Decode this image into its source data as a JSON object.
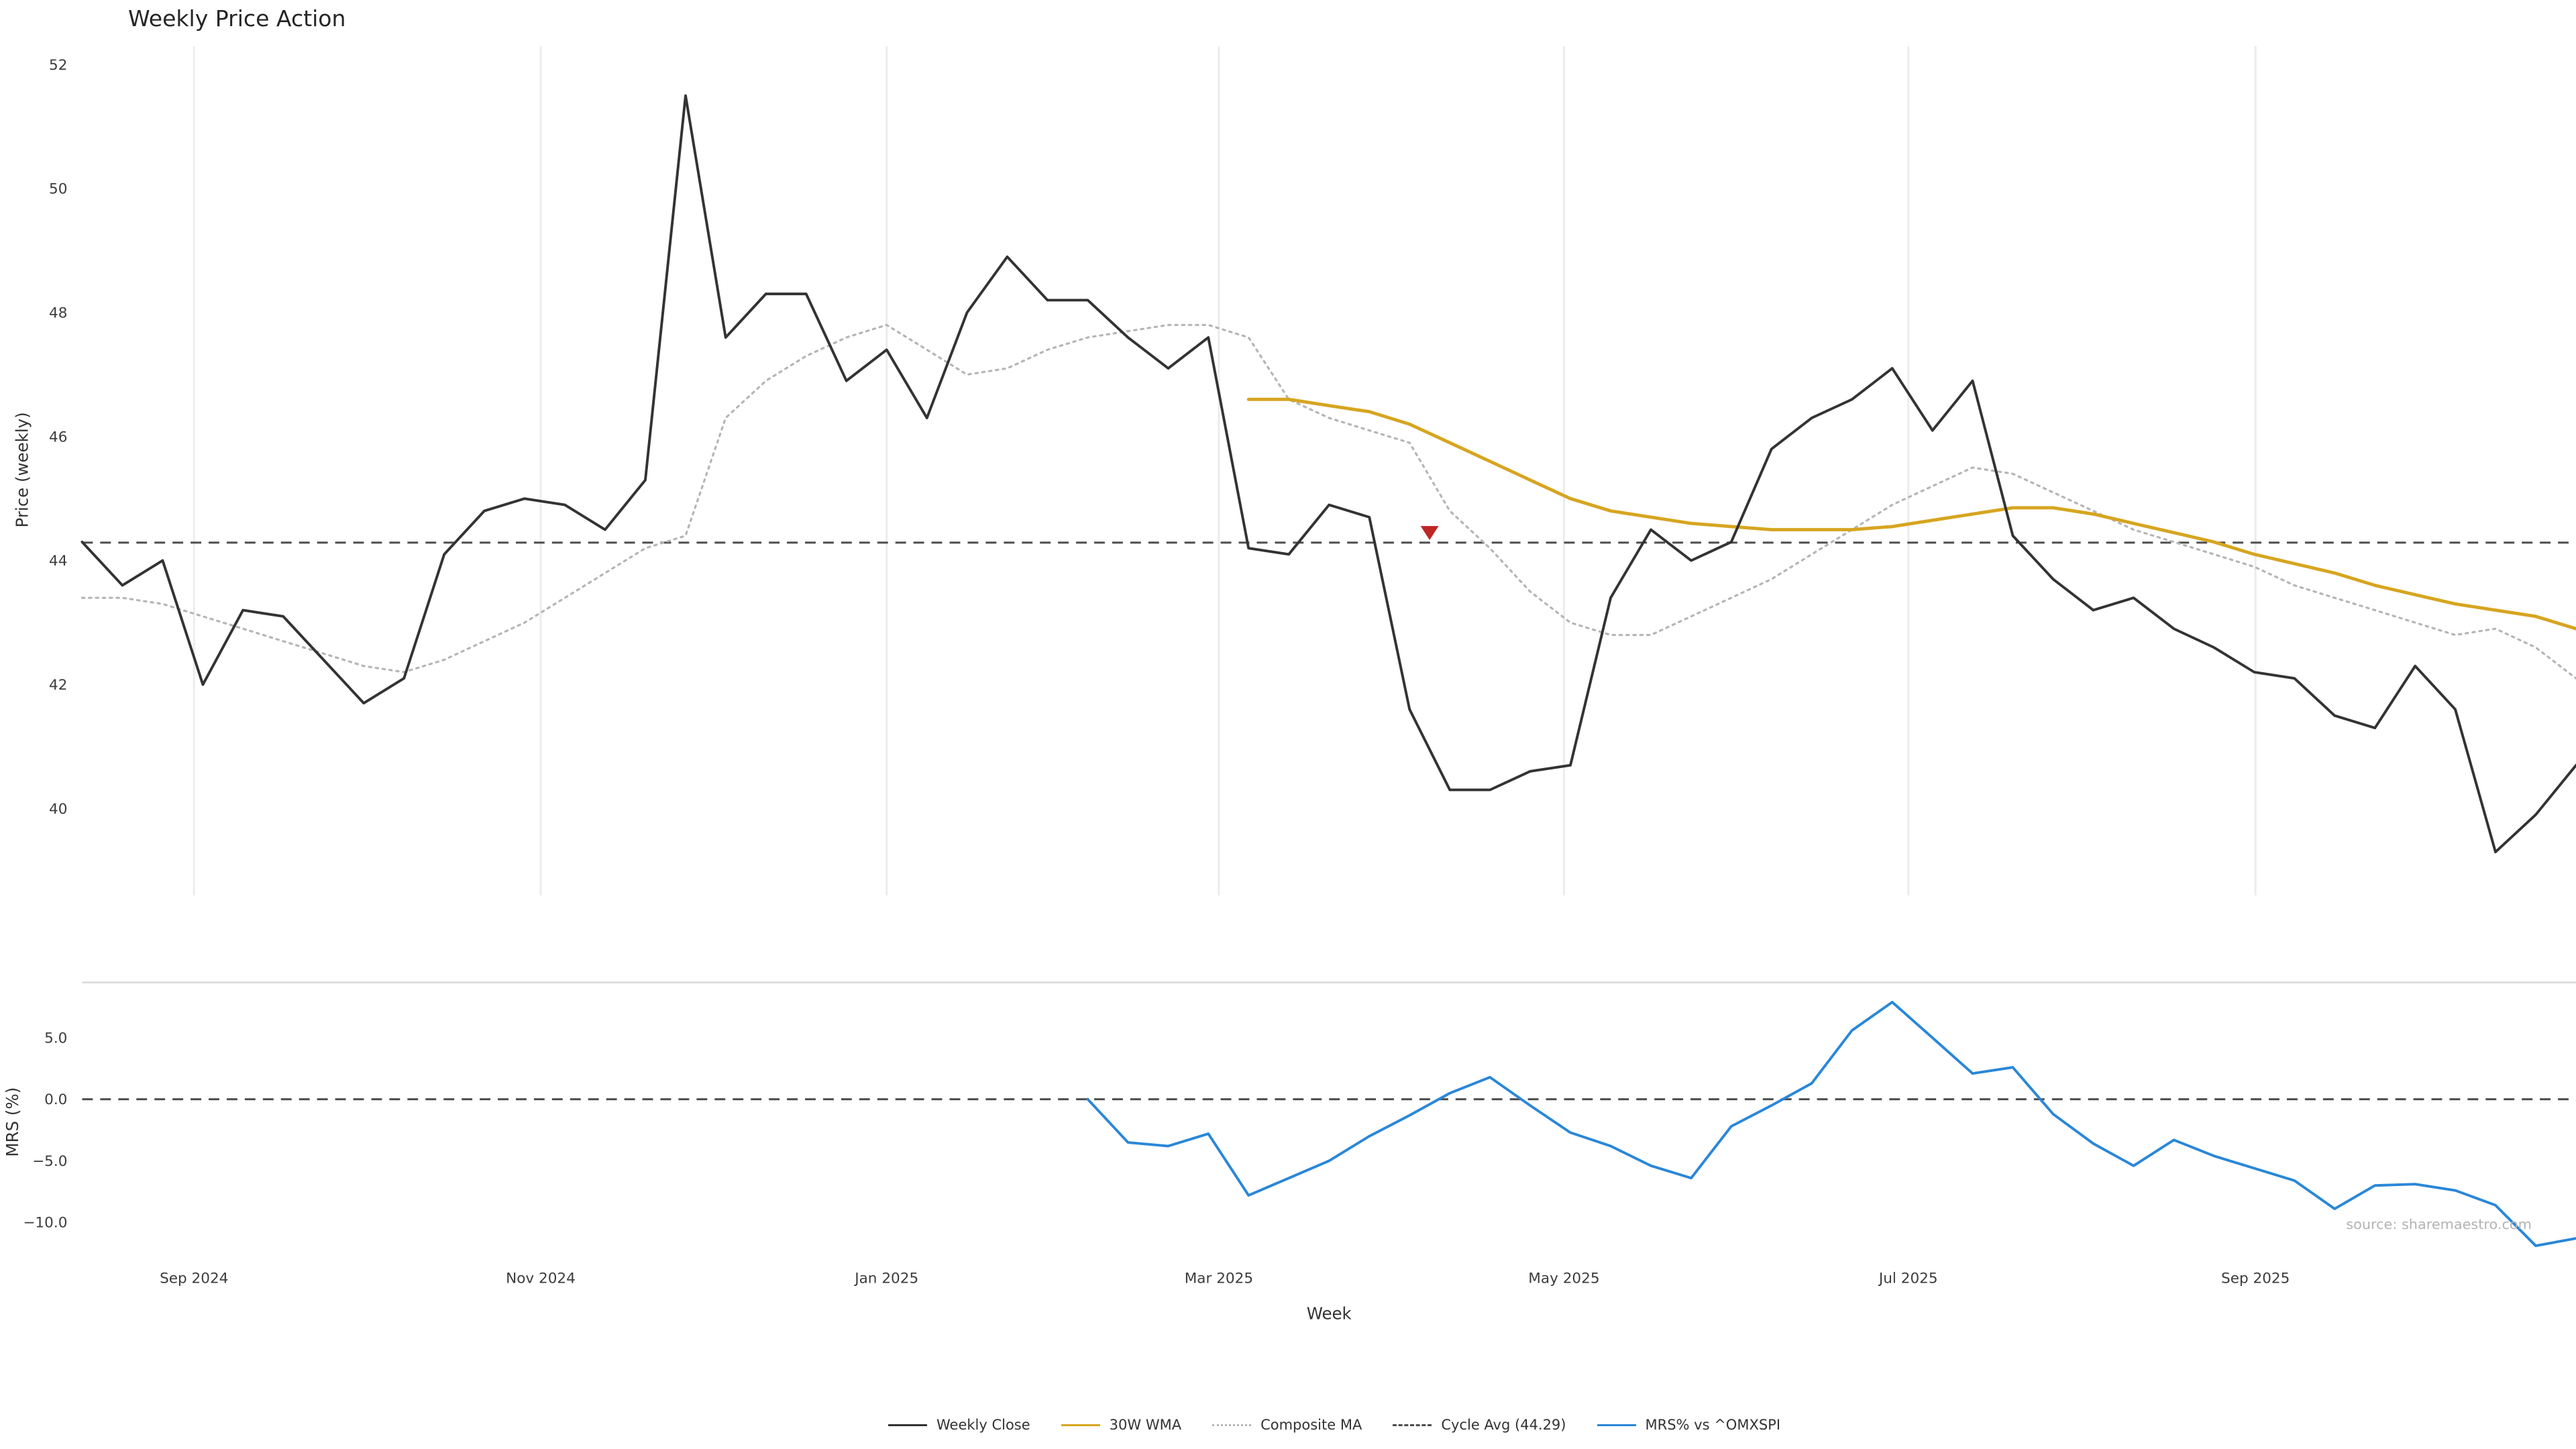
{
  "title": "Weekly Price Action",
  "source": "source: sharemaestro.com",
  "colors": {
    "close": "#333333",
    "wma": "#d6a520",
    "composite": "#b5b5b5",
    "cycle_avg": "#4d4d4d",
    "mrs": "#2a87d8",
    "marker": "#bf2626",
    "grid": "#ececec",
    "spine": "#d9d9d9",
    "tick": "#3c3c3c",
    "source_text": "#b3b3b3"
  },
  "chart_data": [
    {
      "type": "line",
      "title": "Weekly Price Action",
      "ylabel": "Price (weekly)",
      "ylim": [
        38.6,
        52.3
      ],
      "yticks": [
        40,
        42,
        44,
        46,
        48,
        50,
        52
      ],
      "ytick_labels": [
        "40",
        "42",
        "44",
        "46",
        "48",
        "50",
        "52"
      ],
      "xlim": [
        0,
        62
      ],
      "grid": true,
      "legend_position": "bottom-center",
      "xticks": {
        "positions": [
          2.78,
          11.4,
          20.0,
          28.26,
          36.84,
          45.4,
          54.03
        ],
        "labels": [
          "Sep 2024",
          "Nov 2024",
          "Jan 2025",
          "Mar 2025",
          "May 2025",
          "Jul 2025",
          "Sep 2025"
        ]
      },
      "reference_line": {
        "label": "Cycle Avg (44.29)",
        "value": 44.29,
        "style": "dashed"
      },
      "marker": {
        "shape": "triangle-down",
        "week": 33.5,
        "value": 44.45,
        "color": "#bf2626"
      },
      "series": [
        {
          "name": "Composite MA",
          "data_name": "composite-ma-line",
          "style": "dotted",
          "color": "#b5b5b5",
          "width": 1.3,
          "start_index": 0,
          "values": [
            43.4,
            43.4,
            43.3,
            43.1,
            42.9,
            42.7,
            42.5,
            42.3,
            42.2,
            42.4,
            42.7,
            43.0,
            43.4,
            43.8,
            44.2,
            44.4,
            46.3,
            46.9,
            47.3,
            47.6,
            47.8,
            47.4,
            47.0,
            47.1,
            47.4,
            47.6,
            47.7,
            47.8,
            47.8,
            47.6,
            46.6,
            46.3,
            46.1,
            45.9,
            44.8,
            44.2,
            43.5,
            43.0,
            42.8,
            42.8,
            43.1,
            43.4,
            43.7,
            44.1,
            44.5,
            44.9,
            45.2,
            45.5,
            45.4,
            45.1,
            44.8,
            44.5,
            44.3,
            44.1,
            43.9,
            43.6,
            43.4,
            43.2,
            43.0,
            42.8,
            42.9,
            42.6,
            42.1
          ]
        },
        {
          "name": "30W WMA",
          "data_name": "wma-30w-line",
          "style": "solid",
          "color": "#d6a520",
          "width": 2.0,
          "start_index": 29,
          "values": [
            46.6,
            46.6,
            46.5,
            46.4,
            46.2,
            45.9,
            45.6,
            45.3,
            45.0,
            44.8,
            44.7,
            44.6,
            44.55,
            44.5,
            44.5,
            44.5,
            44.55,
            44.65,
            44.75,
            44.85,
            44.85,
            44.75,
            44.6,
            44.45,
            44.3,
            44.1,
            43.95,
            43.8,
            43.6,
            43.45,
            43.3,
            43.2,
            43.1,
            42.9
          ]
        },
        {
          "name": "Weekly Close",
          "data_name": "weekly-close-line",
          "style": "solid",
          "color": "#333333",
          "width": 1.6,
          "start_index": 0,
          "values": [
            44.3,
            43.6,
            44.0,
            42.0,
            43.2,
            43.1,
            42.4,
            41.7,
            42.1,
            44.1,
            44.8,
            45.0,
            44.9,
            44.5,
            45.3,
            51.5,
            47.6,
            48.3,
            48.3,
            46.9,
            47.4,
            46.3,
            48.0,
            48.9,
            48.2,
            48.2,
            47.6,
            47.1,
            47.6,
            44.2,
            44.1,
            44.9,
            44.7,
            41.6,
            40.3,
            40.3,
            40.6,
            40.7,
            43.4,
            44.5,
            44.0,
            44.3,
            45.8,
            46.3,
            46.6,
            47.1,
            46.1,
            46.9,
            44.4,
            43.7,
            43.2,
            43.4,
            42.9,
            42.6,
            42.2,
            42.1,
            41.5,
            41.3,
            42.3,
            41.6,
            39.3,
            39.9,
            40.7
          ]
        }
      ]
    },
    {
      "type": "line",
      "ylabel": "MRS (%)",
      "xlabel": "Week",
      "ylim": [
        -13.2,
        9.5
      ],
      "yticks": [
        -10.0,
        -5.0,
        0.0,
        5.0
      ],
      "ytick_labels": [
        "−10.0",
        "−5.0",
        "0.0",
        "5.0"
      ],
      "grid": false,
      "reference_line": {
        "value": 0.0,
        "style": "dashed"
      },
      "series": [
        {
          "name": "MRS% vs ^OMXSPI",
          "data_name": "mrs-line",
          "style": "solid",
          "color": "#2a87d8",
          "width": 1.6,
          "start_index": 25,
          "values": [
            0.0,
            -3.5,
            -3.8,
            -2.8,
            -7.8,
            -6.4,
            -5.0,
            -3.0,
            -1.3,
            0.5,
            1.8,
            -0.5,
            -2.7,
            -3.8,
            -5.4,
            -6.4,
            -2.2,
            -0.5,
            1.3,
            5.6,
            7.9,
            5.0,
            2.1,
            2.6,
            -1.2,
            -3.6,
            -5.4,
            -3.3,
            -4.6,
            -5.6,
            -6.6,
            -8.9,
            -7.0,
            -6.9,
            -7.4,
            -8.6,
            -11.9,
            -11.3
          ]
        }
      ]
    }
  ],
  "legend": {
    "items": [
      {
        "label": "Weekly Close",
        "line": "solid",
        "color": "#333333"
      },
      {
        "label": "30W WMA",
        "line": "solid",
        "color": "#d6a520"
      },
      {
        "label": "Composite MA",
        "line": "dotted",
        "color": "#b5b5b5"
      },
      {
        "label": "Cycle Avg (44.29)",
        "line": "dashed",
        "color": "#4d4d4d"
      },
      {
        "label": "MRS% vs ^OMXSPI",
        "line": "solid",
        "color": "#2a87d8"
      }
    ]
  }
}
